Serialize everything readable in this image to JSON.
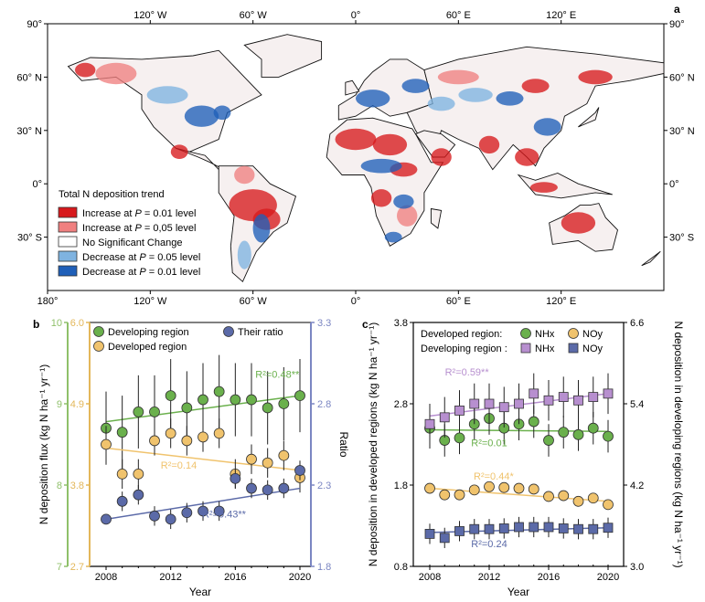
{
  "panel_labels": {
    "a": "a",
    "b": "b",
    "c": "c"
  },
  "colors": {
    "sig_increase": "#d7191c",
    "increase": "#f08080",
    "no_change": "#ffffff",
    "decrease": "#7fb3e0",
    "sig_decrease": "#1f5fb8",
    "developing": "#6ab04c",
    "developed": "#f0c36d",
    "ratio": "#5b6aa8",
    "nhx_developing": "#b78fcf",
    "noy_developing": "#5b6aa8",
    "axis_green": "#8fc06a",
    "axis_yellow": "#e3b75a",
    "axis_blue": "#7b86c2"
  },
  "map": {
    "lon_labels_top": [
      "120° W",
      "60° W",
      "0°",
      "60° E",
      "120° E"
    ],
    "lon_labels_bottom": [
      "180°",
      "120° W",
      "60° W",
      "0°",
      "60° E",
      "120° E"
    ],
    "lat_labels": [
      "90°",
      "60° N",
      "30° N",
      "0°",
      "30° S"
    ],
    "legend": {
      "title": "Total N deposition trend",
      "items": [
        {
          "pre": "Increase at ",
          "p": "P",
          "post": " = 0.01 level",
          "color_key": "sig_increase"
        },
        {
          "pre": "Increase at ",
          "p": "P",
          "post": " = 0,05 level",
          "color_key": "increase"
        },
        {
          "pre": "No Significant Change",
          "p": "",
          "post": "",
          "color_key": "no_change"
        },
        {
          "pre": "Decrease at ",
          "p": "P",
          "post": " = 0.05 level",
          "color_key": "decrease"
        },
        {
          "pre": "Decrease at ",
          "p": "P",
          "post": " = 0.01 level",
          "color_key": "sig_decrease"
        }
      ]
    }
  },
  "chart_data": [
    {
      "panel": "b",
      "type": "scatter",
      "x": [
        2008,
        2009,
        2010,
        2011,
        2012,
        2013,
        2014,
        2015,
        2016,
        2017,
        2018,
        2019,
        2020
      ],
      "xticks": [
        2008,
        2012,
        2016,
        2020
      ],
      "xlabel": "Year",
      "ylabel": "N deposition flux (kg N ha⁻¹ yr⁻¹)",
      "y2label": "Ratio",
      "axes": {
        "developing": {
          "range": [
            7,
            10
          ],
          "ticks": [
            "7",
            "8",
            "9",
            "10"
          ]
        },
        "developed": {
          "range": [
            2.7,
            6.0
          ],
          "ticks": [
            "2.7",
            "3.8",
            "4.9",
            "6.0"
          ]
        },
        "ratio": {
          "range": [
            1.8,
            3.3
          ],
          "ticks": [
            "1.8",
            "2.3",
            "2.8",
            "3.3"
          ]
        }
      },
      "legend": [
        "Developing region",
        "Their ratio",
        "Developed region"
      ],
      "series": [
        {
          "name": "Developing region",
          "axis": "developing",
          "marker": "circle",
          "color_key": "developing",
          "values": [
            8.7,
            8.65,
            8.9,
            8.9,
            9.1,
            8.95,
            9.05,
            9.15,
            9.05,
            9.05,
            8.95,
            9.0,
            9.1
          ],
          "errors": [
            0.45,
            0.45,
            0.45,
            0.45,
            0.45,
            0.45,
            0.45,
            0.45,
            0.45,
            0.45,
            0.45,
            0.45,
            0.45
          ],
          "trend": [
            8.78,
            9.1
          ],
          "r2": "R²=0.48**"
        },
        {
          "name": "Developed region",
          "axis": "developed",
          "marker": "circle",
          "color_key": "developed",
          "values": [
            4.35,
            3.95,
            3.95,
            4.4,
            4.5,
            4.4,
            4.45,
            4.5,
            3.95,
            4.15,
            4.1,
            4.2,
            3.9
          ],
          "errors": [
            0.25,
            0.2,
            0.2,
            0.2,
            0.2,
            0.2,
            0.2,
            0.2,
            0.2,
            0.2,
            0.2,
            0.2,
            0.2
          ],
          "trend": [
            4.3,
            4.0
          ],
          "r2": "R²=0.14"
        },
        {
          "name": "Their ratio",
          "axis": "ratio",
          "marker": "circle",
          "color_key": "ratio",
          "values": [
            2.09,
            2.2,
            2.24,
            2.11,
            2.09,
            2.13,
            2.14,
            2.14,
            2.34,
            2.28,
            2.27,
            2.28,
            2.39
          ],
          "errors": [
            0.03,
            0.06,
            0.06,
            0.06,
            0.06,
            0.06,
            0.06,
            0.06,
            0.06,
            0.06,
            0.06,
            0.06,
            0.06
          ],
          "trend": [
            2.09,
            2.28
          ],
          "r2": "R²=0.43**"
        }
      ]
    },
    {
      "panel": "c",
      "type": "scatter",
      "x": [
        2008,
        2009,
        2010,
        2011,
        2012,
        2013,
        2014,
        2015,
        2016,
        2017,
        2018,
        2019,
        2020
      ],
      "xticks": [
        2008,
        2012,
        2016,
        2020
      ],
      "xlabel": "Year",
      "ylabel": "N deposition in developed regions (kg N ha⁻¹ yr⁻¹)",
      "y2label": "N deposition in developing regions (kg N ha⁻¹ yr⁻¹)",
      "axes": {
        "left": {
          "range": [
            0.8,
            3.8
          ],
          "ticks": [
            "0.8",
            "1.8",
            "2.8",
            "3.8"
          ]
        },
        "right": {
          "range": [
            3.0,
            6.6
          ],
          "ticks": [
            "3.0",
            "4.2",
            "5.4",
            "6.6"
          ]
        }
      },
      "legend_rows": [
        {
          "label": "Developed region:",
          "items": [
            {
              "name": "NHx",
              "marker": "circle",
              "color_key": "developing"
            },
            {
              "name": "NOy",
              "marker": "circle",
              "color_key": "developed"
            }
          ]
        },
        {
          "label": "Developing region :",
          "items": [
            {
              "name": "NHx",
              "marker": "square",
              "color_key": "nhx_developing"
            },
            {
              "name": "NOy",
              "marker": "square",
              "color_key": "noy_developing"
            }
          ]
        }
      ],
      "series": [
        {
          "name": "NHx (developed)",
          "axis": "left",
          "marker": "circle",
          "color_key": "developing",
          "values": [
            2.5,
            2.35,
            2.38,
            2.55,
            2.62,
            2.5,
            2.55,
            2.58,
            2.35,
            2.45,
            2.42,
            2.5,
            2.4
          ],
          "errors": [
            0.25,
            0.2,
            0.2,
            0.2,
            0.2,
            0.2,
            0.2,
            0.2,
            0.2,
            0.2,
            0.2,
            0.2,
            0.2
          ],
          "trend": [
            2.48,
            2.46
          ],
          "r2": "R²=0.01"
        },
        {
          "name": "NOy (developed)",
          "axis": "left",
          "marker": "circle",
          "color_key": "developed",
          "values": [
            1.76,
            1.68,
            1.68,
            1.74,
            1.78,
            1.77,
            1.76,
            1.75,
            1.66,
            1.67,
            1.6,
            1.64,
            1.56
          ],
          "errors": [
            0.03,
            0.03,
            0.03,
            0.03,
            0.03,
            0.03,
            0.03,
            0.03,
            0.03,
            0.03,
            0.03,
            0.03,
            0.03
          ],
          "trend": [
            1.76,
            1.6
          ],
          "r2": "R²=0.44*"
        },
        {
          "name": "NHx (developing)",
          "axis": "right",
          "marker": "square",
          "color_key": "nhx_developing",
          "values": [
            5.1,
            5.2,
            5.3,
            5.4,
            5.4,
            5.35,
            5.4,
            5.55,
            5.45,
            5.5,
            5.45,
            5.5,
            5.55
          ],
          "errors": [
            0.3,
            0.3,
            0.3,
            0.3,
            0.3,
            0.3,
            0.3,
            0.3,
            0.3,
            0.3,
            0.3,
            0.3,
            0.3
          ],
          "trend": [
            5.22,
            5.55
          ],
          "r2": "R²=0.59**"
        },
        {
          "name": "NOy (developing)",
          "axis": "right",
          "marker": "square",
          "color_key": "noy_developing",
          "values": [
            3.48,
            3.42,
            3.52,
            3.55,
            3.55,
            3.56,
            3.58,
            3.58,
            3.58,
            3.56,
            3.55,
            3.55,
            3.57
          ],
          "errors": [
            0.15,
            0.15,
            0.15,
            0.15,
            0.15,
            0.15,
            0.15,
            0.15,
            0.15,
            0.15,
            0.15,
            0.15,
            0.15
          ],
          "trend": [
            3.5,
            3.57
          ],
          "r2": "R²=0.24"
        }
      ]
    }
  ]
}
